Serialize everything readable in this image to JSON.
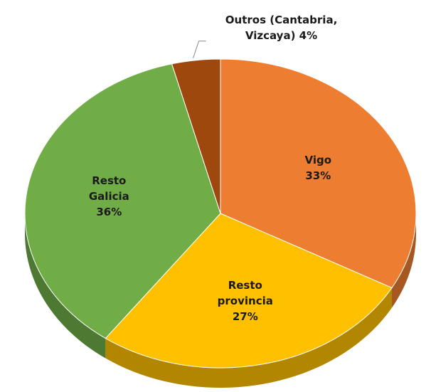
{
  "chart_data": {
    "type": "pie",
    "categories": [
      "Vigo",
      "Resto provincia",
      "Resto Galicia",
      "Outros (Cantabria, Vizcaya)"
    ],
    "values": [
      33,
      27,
      36,
      4
    ],
    "value_labels": [
      "33%",
      "27%",
      "36%",
      "4%"
    ],
    "colors": [
      "#ED7D31",
      "#FFC000",
      "#70AD47",
      "#9E480E"
    ]
  }
}
